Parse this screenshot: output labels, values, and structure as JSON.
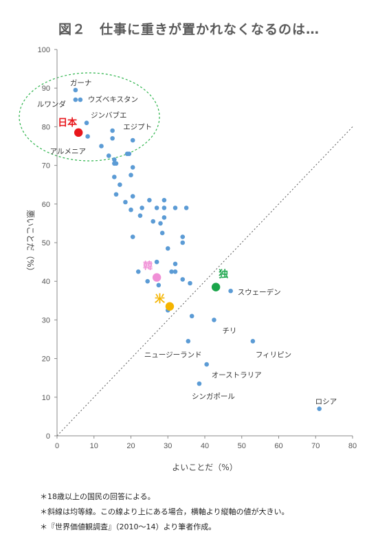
{
  "title": "図２　仕事に重きが置かれなくなるのは…",
  "notes": [
    "＊18歳以上の国民の回答による。",
    "＊斜線は均等線。この線より上にある場合，横軸より縦軸の値が大きい。",
    "＊『世界価値観調査』（2010～14）より筆者作成。"
  ],
  "chart_data": {
    "type": "scatter",
    "xlabel": "よいことだ（%）",
    "ylabel": "悪いことだ（%）",
    "xlim": [
      0,
      80
    ],
    "ylim": [
      0,
      100
    ],
    "xticks": [
      "0",
      "10",
      "20",
      "30",
      "40",
      "50",
      "60",
      "70",
      "80"
    ],
    "yticks": [
      "0",
      "10",
      "20",
      "30",
      "40",
      "50",
      "60",
      "70",
      "80",
      "90",
      "100"
    ],
    "diagonal": "equality line y = x (dotted)",
    "grid": false,
    "colors": {
      "default": "#5b9bd5",
      "japan": "#e8161b",
      "korea": "#f08fd6",
      "germany": "#1aa54a",
      "usa": "#f5b400",
      "ellipse": "#2bb34a"
    },
    "highlighted": [
      {
        "label": "日本",
        "x": 5.8,
        "y": 78.5,
        "color": "#e8161b"
      },
      {
        "label": "韓",
        "x": 27,
        "y": 41,
        "color": "#f08fd6"
      },
      {
        "label": "独",
        "x": 43,
        "y": 38.5,
        "color": "#1aa54a"
      },
      {
        "label": "米",
        "x": 30.5,
        "y": 33.5,
        "color": "#f5b400"
      }
    ],
    "labeled": [
      {
        "label": "ガーナ",
        "x": 5,
        "y": 89.5
      },
      {
        "label": "ルワンダ",
        "x": 5,
        "y": 87
      },
      {
        "label": "ウズベキスタン",
        "x": 6.3,
        "y": 87
      },
      {
        "label": "ジンバブエ",
        "x": 8,
        "y": 81
      },
      {
        "label": "エジプト",
        "x": 20.5,
        "y": 76.5
      },
      {
        "label": "アルメニア",
        "x": 8.3,
        "y": 77.5
      },
      {
        "label": "スウェーデン",
        "x": 47,
        "y": 37.5
      },
      {
        "label": "チリ",
        "x": 42.5,
        "y": 30
      },
      {
        "label": "フィリピン",
        "x": 53,
        "y": 24.5
      },
      {
        "label": "ニュージーランド",
        "x": 35.5,
        "y": 24.5
      },
      {
        "label": "オーストラリア",
        "x": 40.5,
        "y": 18.5
      },
      {
        "label": "シンガポール",
        "x": 38.5,
        "y": 13.5
      },
      {
        "label": "ロシア",
        "x": 71,
        "y": 7
      }
    ],
    "points": [
      [
        12,
        75
      ],
      [
        14,
        72.5
      ],
      [
        15,
        79
      ],
      [
        15,
        77
      ],
      [
        15.5,
        71.5
      ],
      [
        15.5,
        70.5
      ],
      [
        16,
        70.5
      ],
      [
        19,
        73
      ],
      [
        19.5,
        73
      ],
      [
        20.5,
        69.5
      ],
      [
        20,
        67.5
      ],
      [
        15.5,
        67
      ],
      [
        17,
        65
      ],
      [
        16,
        62.5
      ],
      [
        18.5,
        60.5
      ],
      [
        20.5,
        62
      ],
      [
        20,
        58.5
      ],
      [
        22.5,
        57
      ],
      [
        23,
        59
      ],
      [
        25,
        61
      ],
      [
        27,
        59
      ],
      [
        29,
        61
      ],
      [
        29,
        59
      ],
      [
        32,
        59
      ],
      [
        35,
        59
      ],
      [
        26,
        55.5
      ],
      [
        28,
        55
      ],
      [
        29,
        56.5
      ],
      [
        28.5,
        52.5
      ],
      [
        20.5,
        51.5
      ],
      [
        34,
        51.5
      ],
      [
        34,
        50
      ],
      [
        30,
        48.5
      ],
      [
        27,
        45
      ],
      [
        32,
        44.5
      ],
      [
        22,
        42.5
      ],
      [
        31,
        42.5
      ],
      [
        32,
        42.5
      ],
      [
        24.5,
        40
      ],
      [
        34,
        40.5
      ],
      [
        36,
        39.5
      ],
      [
        27.5,
        39
      ],
      [
        30,
        32.5
      ],
      [
        36.5,
        31
      ]
    ]
  }
}
